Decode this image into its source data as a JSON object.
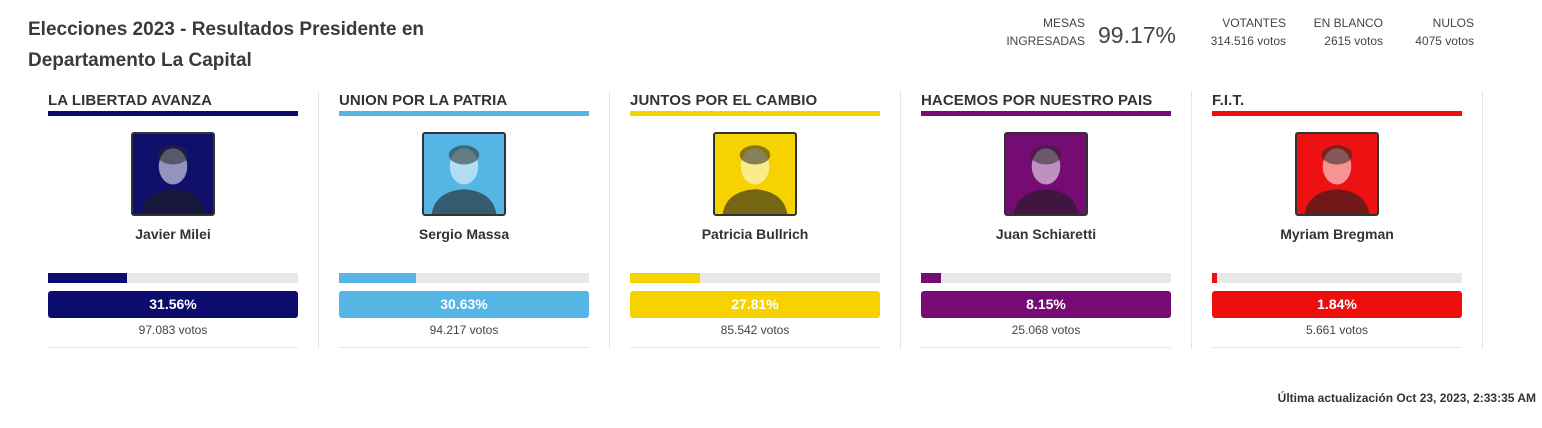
{
  "header": {
    "title_line1": "Elecciones 2023 - Resultados Presidente en",
    "title_line2": "Departamento La Capital"
  },
  "stats": {
    "mesas_label1": "MESAS",
    "mesas_label2": "INGRESADAS",
    "mesas_pct": "99.17%",
    "votantes_label": "VOTANTES",
    "votantes_value": "314.516 votos",
    "blanco_label": "EN BLANCO",
    "blanco_value": "2615 votos",
    "nulos_label": "NULOS",
    "nulos_value": "4075 votos"
  },
  "candidates": [
    {
      "party": "LA LIBERTAD AVANZA",
      "name": "Javier Milei",
      "pct_label": "31.56%",
      "pct": 31.56,
      "votes": "97.083 votos",
      "color": "#0c0c6e",
      "photo_bg": "#10106b",
      "photo_icon": "candidate-photo"
    },
    {
      "party": "UNION POR LA PATRIA",
      "name": "Sergio Massa",
      "pct_label": "30.63%",
      "pct": 30.63,
      "votes": "94.217 votos",
      "color": "#55b6e6",
      "photo_bg": "#55b6e6",
      "photo_icon": "candidate-photo"
    },
    {
      "party": "JUNTOS POR EL CAMBIO",
      "name": "Patricia Bullrich",
      "pct_label": "27.81%",
      "pct": 27.81,
      "votes": "85.542 votos",
      "color": "#f6d200",
      "photo_bg": "#f6d200",
      "photo_icon": "candidate-photo"
    },
    {
      "party": "HACEMOS POR NUESTRO PAIS",
      "name": "Juan Schiaretti",
      "pct_label": "8.15%",
      "pct": 8.15,
      "votes": "25.068 votos",
      "color": "#740c74",
      "photo_bg": "#740c74",
      "photo_icon": "candidate-photo"
    },
    {
      "party": "F.I.T.",
      "name": "Myriam Bregman",
      "pct_label": "1.84%",
      "pct": 1.84,
      "votes": "5.661 votos",
      "color": "#ee0e0e",
      "photo_bg": "#ee1111",
      "photo_icon": "candidate-photo"
    }
  ],
  "footer": {
    "updated": "Última actualización Oct 23, 2023, 2:33:35 AM"
  }
}
